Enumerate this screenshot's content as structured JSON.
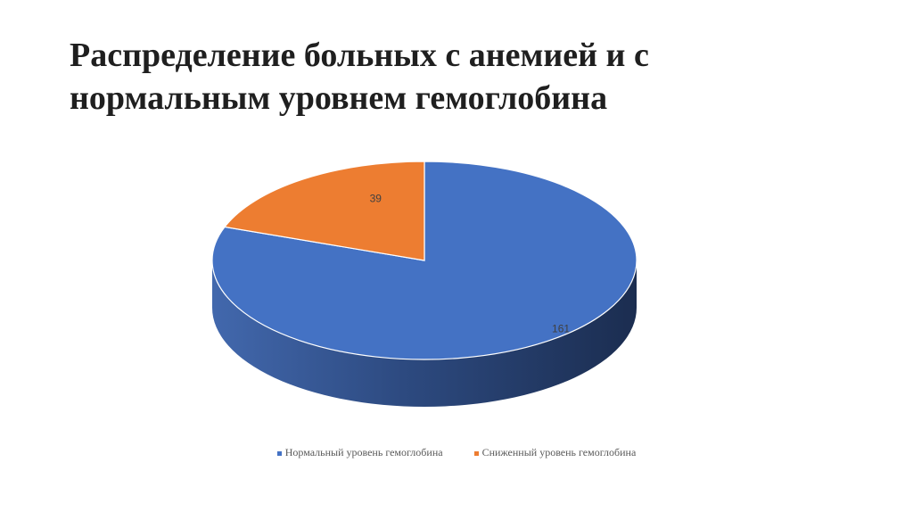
{
  "slide": {
    "title_line1": "Распределение больных с анемией и с",
    "title_line2": "нормальным уровнем гемоглобина"
  },
  "chart_data": {
    "type": "pie",
    "style": "3d",
    "title": "",
    "categories": [
      "Нормальный уровень гемоглобина",
      "Сниженный уровень гемоглобина"
    ],
    "values": [
      161,
      39
    ],
    "colors": [
      "#4472c4",
      "#ed7d31"
    ],
    "data_labels": [
      "161",
      "39"
    ],
    "legend": "bottom"
  }
}
